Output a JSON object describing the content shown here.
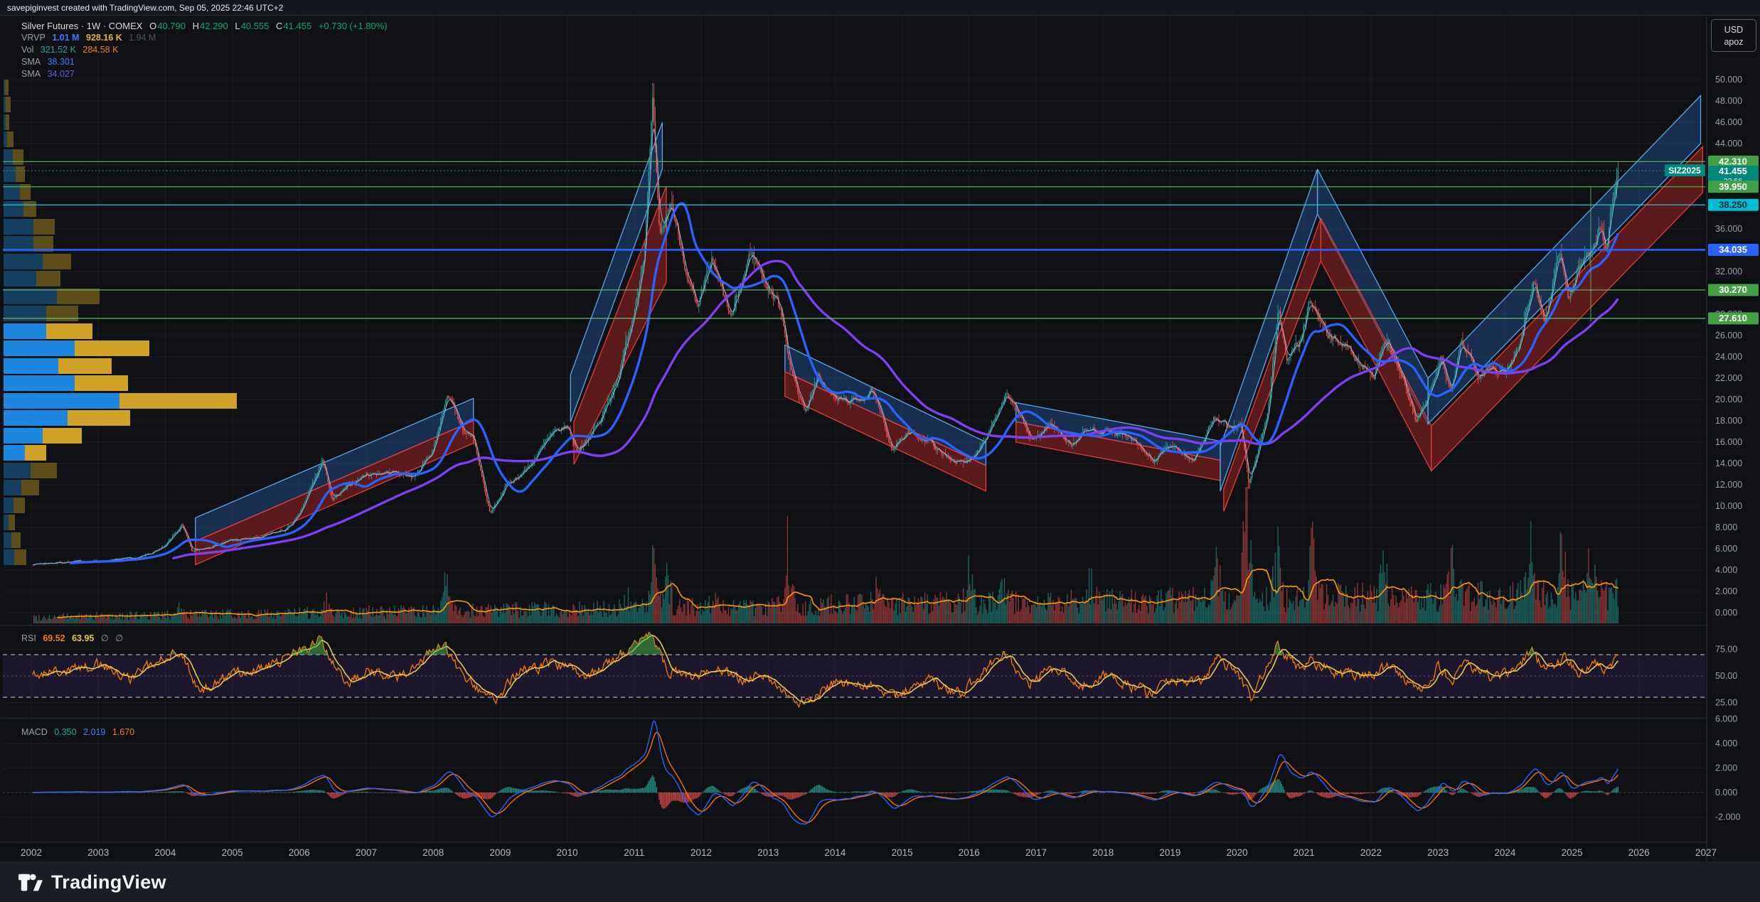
{
  "header": {
    "attribution": "savepiginvest created with TradingView.com, Sep 05, 2025 22:46 UTC+2"
  },
  "footer": {
    "brand": "TradingView"
  },
  "unit_selector": {
    "currency": "USD",
    "unit": "apoz"
  },
  "legend": {
    "symbol_title": "Silver Futures · 1W · COMEX",
    "o_label": "O",
    "o_value": "40.790",
    "h_label": "H",
    "h_value": "42.290",
    "l_label": "L",
    "l_value": "40.555",
    "c_label": "C",
    "c_value": "41.455",
    "change": "+0.730 (+1.80%)",
    "vrvp_label": "VRVP",
    "vrvp_v1": "1.01 M",
    "vrvp_v2": "928.16 K",
    "vrvp_v3": "1.94 M",
    "vol_label": "Vol",
    "vol_v1": "321.52 K",
    "vol_v2": "284.58 K",
    "sma1_label": "SMA",
    "sma1_value": "38.301",
    "sma2_label": "SMA",
    "sma2_value": "34.027",
    "rsi_label": "RSI",
    "rsi_v1": "69.52",
    "rsi_v2": "63.95",
    "rsi_v3": "∅",
    "rsi_v4": "∅",
    "macd_label": "MACD",
    "macd_v1": "0.350",
    "macd_v2": "2.019",
    "macd_v3": "1.670"
  },
  "chart_data": {
    "type": "candlestick",
    "symbol": "Silver Futures",
    "interval": "1W",
    "exchange": "COMEX",
    "contract_label": "SIZ2025",
    "last_ohlc": {
      "open": 40.79,
      "high": 42.29,
      "low": 40.555,
      "close": 41.455
    },
    "change_text": "+0.730 (+1.80%)",
    "countdown": "23:56",
    "price_axis": {
      "min": 0,
      "max": 50,
      "step": 2,
      "unit": "USD",
      "per": "apoz"
    },
    "years": [
      2002,
      2003,
      2004,
      2005,
      2006,
      2007,
      2008,
      2009,
      2010,
      2011,
      2012,
      2013,
      2014,
      2015,
      2016,
      2017,
      2018,
      2019,
      2020,
      2021,
      2022,
      2023,
      2024,
      2025,
      2026,
      2027
    ],
    "levels": [
      {
        "price": 42.31,
        "line": "#4caf50",
        "badge_bg": "#43a047",
        "badge_fg": "#ffffff",
        "style": "solid"
      },
      {
        "price": 41.455,
        "line": "#26a69a",
        "badge_bg": "#00897b",
        "badge_fg": "#ffffff",
        "style": "dotted",
        "extra": "23:56",
        "is_last": true
      },
      {
        "price": 39.95,
        "line": "#4caf50",
        "badge_bg": "#43a047",
        "badge_fg": "#ffffff",
        "style": "solid"
      },
      {
        "price": 38.25,
        "line": "#26c6da",
        "badge_bg": "#00bcd4",
        "badge_fg": "#06252a",
        "style": "solid"
      },
      {
        "price": 34.035,
        "line": "#2962ff",
        "badge_bg": "#2962ff",
        "badge_fg": "#ffffff",
        "style": "solid",
        "thick": true
      },
      {
        "price": 30.27,
        "line": "#66bb6a",
        "badge_bg": "#43a047",
        "badge_fg": "#ffffff",
        "style": "solid"
      },
      {
        "price": 27.61,
        "line": "#66bb6a",
        "badge_bg": "#43a047",
        "badge_fg": "#ffffff",
        "style": "solid"
      }
    ],
    "close_anchors": [
      [
        2002.0,
        4.55
      ],
      [
        2002.5,
        4.75
      ],
      [
        2003.0,
        4.85
      ],
      [
        2003.6,
        5.1
      ],
      [
        2004.0,
        6.2
      ],
      [
        2004.25,
        8.25
      ],
      [
        2004.4,
        5.7
      ],
      [
        2004.7,
        6.3
      ],
      [
        2005.0,
        6.8
      ],
      [
        2005.4,
        7.0
      ],
      [
        2005.8,
        7.8
      ],
      [
        2006.0,
        9.1
      ],
      [
        2006.35,
        14.3
      ],
      [
        2006.5,
        10.5
      ],
      [
        2006.8,
        12.2
      ],
      [
        2007.0,
        13.0
      ],
      [
        2007.4,
        13.2
      ],
      [
        2007.7,
        12.8
      ],
      [
        2008.0,
        15.2
      ],
      [
        2008.2,
        20.5
      ],
      [
        2008.45,
        17.0
      ],
      [
        2008.6,
        16.5
      ],
      [
        2008.85,
        9.2
      ],
      [
        2009.1,
        12.0
      ],
      [
        2009.4,
        13.5
      ],
      [
        2009.75,
        16.5
      ],
      [
        2010.0,
        17.5
      ],
      [
        2010.15,
        15.2
      ],
      [
        2010.5,
        18.0
      ],
      [
        2010.8,
        23.0
      ],
      [
        2011.0,
        28.5
      ],
      [
        2011.15,
        34.0
      ],
      [
        2011.28,
        47.5
      ],
      [
        2011.38,
        34.5
      ],
      [
        2011.55,
        38.5
      ],
      [
        2011.75,
        33.0
      ],
      [
        2011.95,
        28.0
      ],
      [
        2012.15,
        33.0
      ],
      [
        2012.45,
        27.5
      ],
      [
        2012.75,
        34.0
      ],
      [
        2013.0,
        30.5
      ],
      [
        2013.2,
        28.5
      ],
      [
        2013.35,
        22.5
      ],
      [
        2013.55,
        19.0
      ],
      [
        2013.75,
        22.0
      ],
      [
        2014.0,
        20.0
      ],
      [
        2014.3,
        19.8
      ],
      [
        2014.55,
        20.8
      ],
      [
        2014.85,
        15.5
      ],
      [
        2015.1,
        16.8
      ],
      [
        2015.4,
        16.2
      ],
      [
        2015.6,
        14.8
      ],
      [
        2015.95,
        13.9
      ],
      [
        2016.15,
        15.5
      ],
      [
        2016.55,
        20.3
      ],
      [
        2016.75,
        18.5
      ],
      [
        2016.95,
        16.0
      ],
      [
        2017.2,
        17.8
      ],
      [
        2017.55,
        15.7
      ],
      [
        2017.7,
        17.0
      ],
      [
        2018.0,
        17.2
      ],
      [
        2018.4,
        16.3
      ],
      [
        2018.75,
        14.2
      ],
      [
        2019.0,
        15.6
      ],
      [
        2019.35,
        14.4
      ],
      [
        2019.65,
        18.2
      ],
      [
        2019.9,
        17.2
      ],
      [
        2020.05,
        18.0
      ],
      [
        2020.18,
        12.0
      ],
      [
        2020.45,
        18.5
      ],
      [
        2020.62,
        28.5
      ],
      [
        2020.75,
        23.5
      ],
      [
        2020.95,
        25.5
      ],
      [
        2021.1,
        29.2
      ],
      [
        2021.35,
        25.8
      ],
      [
        2021.6,
        25.2
      ],
      [
        2021.85,
        23.3
      ],
      [
        2022.05,
        22.5
      ],
      [
        2022.25,
        26.0
      ],
      [
        2022.5,
        21.5
      ],
      [
        2022.68,
        17.8
      ],
      [
        2022.9,
        21.0
      ],
      [
        2023.05,
        23.8
      ],
      [
        2023.2,
        20.3
      ],
      [
        2023.35,
        25.5
      ],
      [
        2023.6,
        22.5
      ],
      [
        2023.8,
        23.3
      ],
      [
        2024.0,
        22.3
      ],
      [
        2024.2,
        25.0
      ],
      [
        2024.42,
        31.5
      ],
      [
        2024.6,
        27.3
      ],
      [
        2024.82,
        34.3
      ],
      [
        2024.95,
        29.3
      ],
      [
        2025.1,
        32.3
      ],
      [
        2025.25,
        33.8
      ],
      [
        2025.42,
        36.2
      ],
      [
        2025.52,
        34.0
      ],
      [
        2025.6,
        38.5
      ],
      [
        2025.66,
        40.7
      ],
      [
        2025.7,
        41.455
      ]
    ],
    "sma_indicators": [
      {
        "period": 30,
        "color": "#2962ff",
        "last": 38.301
      },
      {
        "period": 110,
        "color": "#7e3ff2",
        "last": 34.027
      }
    ],
    "channels": [
      {
        "kind": "blue",
        "pts": [
          [
            2004.45,
            8.9
          ],
          [
            2008.6,
            20.1
          ],
          [
            2008.6,
            18.0
          ],
          [
            2004.45,
            6.7
          ]
        ]
      },
      {
        "kind": "red",
        "pts": [
          [
            2004.45,
            6.7
          ],
          [
            2008.6,
            18.0
          ],
          [
            2008.6,
            15.9
          ],
          [
            2004.45,
            4.5
          ]
        ]
      },
      {
        "kind": "blue",
        "pts": [
          [
            2010.05,
            22.3
          ],
          [
            2011.42,
            46.0
          ],
          [
            2011.42,
            41.6
          ],
          [
            2010.05,
            17.9
          ]
        ]
      },
      {
        "kind": "red",
        "pts": [
          [
            2010.1,
            17.9
          ],
          [
            2011.48,
            40.0
          ],
          [
            2011.48,
            31.0
          ],
          [
            2010.1,
            13.9
          ]
        ]
      },
      {
        "kind": "blue",
        "pts": [
          [
            2013.25,
            25.1
          ],
          [
            2016.25,
            16.0
          ],
          [
            2016.25,
            13.8
          ],
          [
            2013.25,
            22.6
          ]
        ]
      },
      {
        "kind": "red",
        "pts": [
          [
            2013.25,
            22.6
          ],
          [
            2016.25,
            13.8
          ],
          [
            2016.25,
            11.4
          ],
          [
            2013.25,
            20.3
          ]
        ]
      },
      {
        "kind": "blue",
        "pts": [
          [
            2016.7,
            19.7
          ],
          [
            2019.75,
            16.1
          ],
          [
            2019.75,
            14.3
          ],
          [
            2016.7,
            17.9
          ]
        ]
      },
      {
        "kind": "red",
        "pts": [
          [
            2016.7,
            17.9
          ],
          [
            2019.75,
            14.3
          ],
          [
            2019.75,
            12.4
          ],
          [
            2016.7,
            16.0
          ]
        ]
      },
      {
        "kind": "blue",
        "pts": [
          [
            2019.75,
            15.6
          ],
          [
            2021.2,
            41.6
          ],
          [
            2021.2,
            37.4
          ],
          [
            2019.75,
            11.4
          ]
        ]
      },
      {
        "kind": "red",
        "pts": [
          [
            2019.8,
            11.6
          ],
          [
            2021.25,
            37.0
          ],
          [
            2021.25,
            33.0
          ],
          [
            2019.8,
            9.5
          ]
        ]
      },
      {
        "kind": "blue",
        "pts": [
          [
            2021.2,
            41.6
          ],
          [
            2022.85,
            22.0
          ],
          [
            2022.85,
            17.7
          ],
          [
            2021.2,
            37.4
          ]
        ]
      },
      {
        "kind": "red",
        "pts": [
          [
            2021.25,
            37.0
          ],
          [
            2022.9,
            17.5
          ],
          [
            2022.9,
            13.3
          ],
          [
            2021.25,
            33.0
          ]
        ]
      },
      {
        "kind": "blue",
        "pts": [
          [
            2022.85,
            22.0
          ],
          [
            2026.92,
            48.5
          ],
          [
            2026.92,
            44.0
          ],
          [
            2022.85,
            17.7
          ]
        ]
      },
      {
        "kind": "red",
        "pts": [
          [
            2022.9,
            17.5
          ],
          [
            2026.95,
            43.7
          ],
          [
            2026.95,
            39.4
          ],
          [
            2022.9,
            13.3
          ]
        ]
      }
    ],
    "vrvp_rows": [
      [
        112,
        2,
        7,
        0
      ],
      [
        136,
        3,
        10,
        0
      ],
      [
        161,
        3,
        8,
        0
      ],
      [
        185,
        5,
        14,
        0
      ],
      [
        210,
        13,
        28,
        0
      ],
      [
        234,
        17,
        30,
        0
      ],
      [
        259,
        23,
        38,
        0
      ],
      [
        283,
        28,
        46,
        0
      ],
      [
        308,
        42,
        72,
        0
      ],
      [
        332,
        42,
        70,
        0
      ],
      [
        357,
        55,
        95,
        0
      ],
      [
        381,
        46,
        80,
        0
      ],
      [
        406,
        75,
        135,
        0
      ],
      [
        430,
        60,
        105,
        0
      ],
      [
        455,
        60,
        125,
        1
      ],
      [
        479,
        100,
        205,
        1
      ],
      [
        504,
        77,
        152,
        1
      ],
      [
        528,
        100,
        175,
        1
      ],
      [
        553,
        163,
        328,
        1
      ],
      [
        577,
        90,
        178,
        1
      ],
      [
        602,
        55,
        110,
        1
      ],
      [
        626,
        30,
        60,
        1
      ],
      [
        651,
        38,
        75,
        0
      ],
      [
        675,
        25,
        50,
        0
      ],
      [
        700,
        14,
        30,
        0
      ],
      [
        724,
        7,
        16,
        0
      ],
      [
        749,
        11,
        24,
        0
      ],
      [
        773,
        15,
        32,
        0
      ]
    ],
    "volume": {
      "last": 321520,
      "ma_last": 284580,
      "spikes": [
        [
          2004.2,
          2.0
        ],
        [
          2006.4,
          2.2
        ],
        [
          2008.2,
          3.0
        ],
        [
          2010.9,
          2.0
        ],
        [
          2011.3,
          3.6
        ],
        [
          2011.5,
          2.6
        ],
        [
          2012.2,
          2.0
        ],
        [
          2013.3,
          4.2
        ],
        [
          2014.6,
          2.0
        ],
        [
          2016.0,
          2.2
        ],
        [
          2016.5,
          2.4
        ],
        [
          2017.8,
          2.0
        ],
        [
          2019.7,
          2.2
        ],
        [
          2020.15,
          5.5
        ],
        [
          2020.6,
          2.8
        ],
        [
          2021.1,
          3.0
        ],
        [
          2022.2,
          2.0
        ],
        [
          2023.2,
          2.2
        ],
        [
          2024.4,
          2.8
        ],
        [
          2024.85,
          2.2
        ],
        [
          2025.3,
          2.4
        ]
      ]
    },
    "rsi": {
      "last": 69.52,
      "ma_last": 63.95,
      "ticks": [
        75,
        50,
        25
      ],
      "bands": [
        70,
        50,
        30
      ],
      "anchors": [
        [
          2002.0,
          50
        ],
        [
          2002.5,
          55
        ],
        [
          2003.0,
          60
        ],
        [
          2003.5,
          48
        ],
        [
          2004.2,
          76
        ],
        [
          2004.5,
          35
        ],
        [
          2005.0,
          52
        ],
        [
          2005.5,
          58
        ],
        [
          2006.3,
          83
        ],
        [
          2006.7,
          42
        ],
        [
          2007.0,
          55
        ],
        [
          2007.5,
          50
        ],
        [
          2008.15,
          79
        ],
        [
          2008.5,
          45
        ],
        [
          2008.9,
          27
        ],
        [
          2009.3,
          55
        ],
        [
          2009.8,
          62
        ],
        [
          2010.0,
          58
        ],
        [
          2010.3,
          50
        ],
        [
          2010.8,
          70
        ],
        [
          2011.25,
          87
        ],
        [
          2011.5,
          55
        ],
        [
          2011.8,
          48
        ],
        [
          2012.2,
          58
        ],
        [
          2012.6,
          45
        ],
        [
          2012.9,
          55
        ],
        [
          2013.3,
          32
        ],
        [
          2013.6,
          25
        ],
        [
          2014.0,
          45
        ],
        [
          2014.5,
          40
        ],
        [
          2014.9,
          32
        ],
        [
          2015.4,
          45
        ],
        [
          2015.9,
          35
        ],
        [
          2016.5,
          72
        ],
        [
          2016.9,
          45
        ],
        [
          2017.3,
          58
        ],
        [
          2017.7,
          42
        ],
        [
          2018.0,
          52
        ],
        [
          2018.7,
          33
        ],
        [
          2019.0,
          48
        ],
        [
          2019.4,
          42
        ],
        [
          2019.7,
          65
        ],
        [
          2020.0,
          55
        ],
        [
          2020.2,
          28
        ],
        [
          2020.6,
          78
        ],
        [
          2020.9,
          58
        ],
        [
          2021.1,
          65
        ],
        [
          2021.6,
          50
        ],
        [
          2022.0,
          52
        ],
        [
          2022.3,
          60
        ],
        [
          2022.7,
          33
        ],
        [
          2023.0,
          58
        ],
        [
          2023.2,
          44
        ],
        [
          2023.4,
          62
        ],
        [
          2023.8,
          48
        ],
        [
          2024.0,
          50
        ],
        [
          2024.4,
          72
        ],
        [
          2024.6,
          55
        ],
        [
          2024.9,
          68
        ],
        [
          2025.1,
          52
        ],
        [
          2025.3,
          62
        ],
        [
          2025.5,
          58
        ],
        [
          2025.68,
          69.5
        ]
      ]
    },
    "macd": {
      "hist_last": 0.35,
      "macd_last": 2.019,
      "signal_last": 1.67,
      "ticks": [
        6,
        4,
        2,
        0,
        -2
      ]
    },
    "marker": {
      "green_cross_x_year": 2025.28,
      "green_cross_price_top": 39.9,
      "green_cross_price_bottom": 27.3
    }
  },
  "colors": {
    "up": "#26a69a",
    "down": "#ef5350",
    "vol_up": "rgba(38,166,154,0.55)",
    "vol_down": "rgba(239,83,80,0.55)",
    "sma_fast": "#2962ff",
    "sma_slow": "#7e3ff2",
    "close_line": "rgba(158,200,255,0.75)",
    "chan_blue_fill": "rgba(44,116,214,0.30)",
    "chan_blue_stroke": "#57a6e8",
    "chan_red_fill": "rgba(140,32,32,0.60)",
    "chan_red_stroke": "#e23b3b",
    "vrvp_blue_dim": "#16405f",
    "vrvp_gold_dim": "#5d4d1b",
    "vrvp_blue_bright": "#1d87e0",
    "vrvp_gold_bright": "#cfa227",
    "rsi_line": "#f57c00",
    "rsi_ma": "#e5c84b",
    "rsi_band": "rgba(103,58,183,0.16)",
    "rsi_fill": "rgba(76,175,80,0.55)",
    "macd_line": "#2962ff",
    "macd_signal": "#ff6d00",
    "grid": "rgba(255,255,255,0.05)",
    "axis_text": "#9b9eab",
    "separator": "#2a2e39",
    "vol_ma": "#ff9800"
  }
}
